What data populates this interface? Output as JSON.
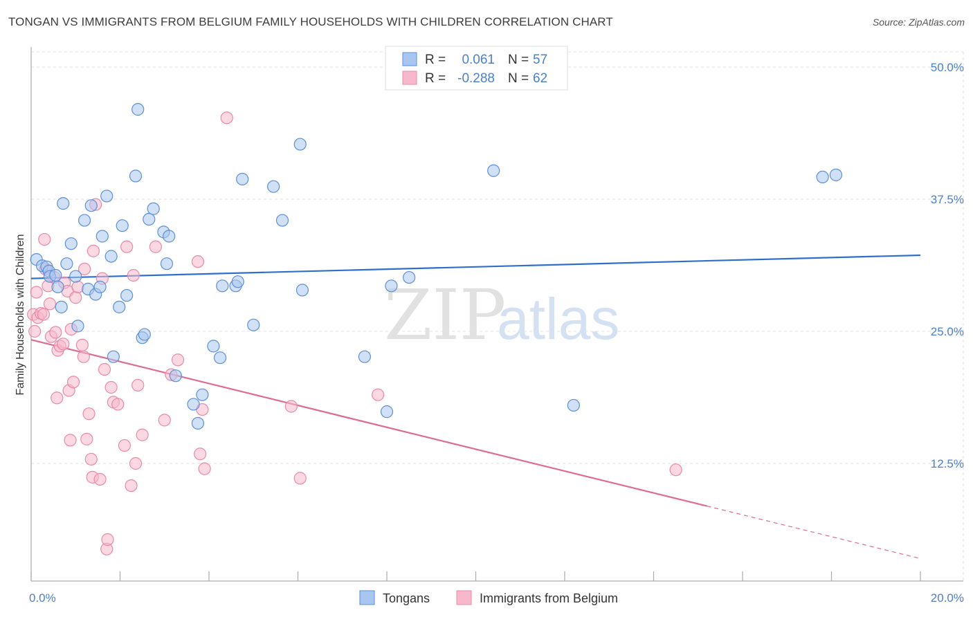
{
  "title": "TONGAN VS IMMIGRANTS FROM BELGIUM FAMILY HOUSEHOLDS WITH CHILDREN CORRELATION CHART",
  "source": "Source: ZipAtlas.com",
  "watermark": {
    "zip": "ZIP",
    "atlas": "atlas"
  },
  "colors": {
    "blue_fill": "#a9c6f0",
    "blue_stroke": "#5b8fd6",
    "blue_line": "#2f6fcc",
    "pink_fill": "#f7b8cb",
    "pink_stroke": "#e889a6",
    "pink_line": "#e06a92",
    "accent_text": "#4a7fd0"
  },
  "legend": {
    "rows": [
      {
        "r_label": "R =",
        "r_value": "0.061",
        "n_label": "N =",
        "n_value": "57"
      },
      {
        "r_label": "R =",
        "r_value": "-0.288",
        "n_label": "N =",
        "n_value": "62"
      }
    ]
  },
  "bottom_legend": [
    "Tongans",
    "Immigrants from Belgium"
  ],
  "chart_data": {
    "type": "scatter",
    "title": "TONGAN VS IMMIGRANTS FROM BELGIUM FAMILY HOUSEHOLDS WITH CHILDREN CORRELATION CHART",
    "xlabel": "",
    "ylabel": "Family Households with Children",
    "xlim": [
      0,
      20
    ],
    "ylim": [
      0,
      52
    ],
    "x_tick_labels": [
      "0.0%",
      "20.0%"
    ],
    "y_ticks": [
      12.5,
      25.0,
      37.5,
      50.0
    ],
    "y_tick_labels": [
      "12.5%",
      "25.0%",
      "37.5%",
      "50.0%"
    ],
    "grid": true,
    "series": [
      {
        "name": "Tongans",
        "r": 0.061,
        "n": 57,
        "trend": {
          "x": [
            0,
            20
          ],
          "y": [
            30.0,
            32.2
          ],
          "solid_until": 20
        },
        "points": [
          [
            0.12,
            31.8
          ],
          [
            0.25,
            31.2
          ],
          [
            0.35,
            31.1
          ],
          [
            0.4,
            30.7
          ],
          [
            0.42,
            30.2
          ],
          [
            0.55,
            30.3
          ],
          [
            0.6,
            29.2
          ],
          [
            0.68,
            27.3
          ],
          [
            0.72,
            37.1
          ],
          [
            0.8,
            31.4
          ],
          [
            0.9,
            33.3
          ],
          [
            1.0,
            30.2
          ],
          [
            1.05,
            25.5
          ],
          [
            1.2,
            35.5
          ],
          [
            1.28,
            29.0
          ],
          [
            1.35,
            36.9
          ],
          [
            1.45,
            28.5
          ],
          [
            1.55,
            29.2
          ],
          [
            1.6,
            34.0
          ],
          [
            1.7,
            37.8
          ],
          [
            1.8,
            32.1
          ],
          [
            1.85,
            22.6
          ],
          [
            1.98,
            27.3
          ],
          [
            2.05,
            35.0
          ],
          [
            2.15,
            28.4
          ],
          [
            2.35,
            39.7
          ],
          [
            2.4,
            46.0
          ],
          [
            2.5,
            24.4
          ],
          [
            2.55,
            24.7
          ],
          [
            2.65,
            35.6
          ],
          [
            2.75,
            36.6
          ],
          [
            2.98,
            34.4
          ],
          [
            3.1,
            34.0
          ],
          [
            3.05,
            31.4
          ],
          [
            3.25,
            20.8
          ],
          [
            3.65,
            18.1
          ],
          [
            3.75,
            16.3
          ],
          [
            3.85,
            19.0
          ],
          [
            4.1,
            23.6
          ],
          [
            4.25,
            22.5
          ],
          [
            4.3,
            29.3
          ],
          [
            4.6,
            29.3
          ],
          [
            4.65,
            29.7
          ],
          [
            4.75,
            39.4
          ],
          [
            5.0,
            25.6
          ],
          [
            5.45,
            38.7
          ],
          [
            5.65,
            35.5
          ],
          [
            6.05,
            42.7
          ],
          [
            6.1,
            28.9
          ],
          [
            7.5,
            22.6
          ],
          [
            8.0,
            17.4
          ],
          [
            8.1,
            29.3
          ],
          [
            8.5,
            30.1
          ],
          [
            10.4,
            40.2
          ],
          [
            12.2,
            18.0
          ],
          [
            17.8,
            39.6
          ],
          [
            18.1,
            39.8
          ]
        ]
      },
      {
        "name": "Immigrants from Belgium",
        "r": -0.288,
        "n": 62,
        "trend": {
          "x": [
            0,
            20
          ],
          "y": [
            24.2,
            3.5
          ],
          "solid_until": 15.2
        },
        "points": [
          [
            0.05,
            26.6
          ],
          [
            0.08,
            25.0
          ],
          [
            0.12,
            28.7
          ],
          [
            0.15,
            26.3
          ],
          [
            0.22,
            26.7
          ],
          [
            0.28,
            26.6
          ],
          [
            0.3,
            33.7
          ],
          [
            0.32,
            30.9
          ],
          [
            0.38,
            29.3
          ],
          [
            0.42,
            27.6
          ],
          [
            0.45,
            24.5
          ],
          [
            0.52,
            30.1
          ],
          [
            0.55,
            24.9
          ],
          [
            0.58,
            18.7
          ],
          [
            0.6,
            23.2
          ],
          [
            0.65,
            23.6
          ],
          [
            0.72,
            23.8
          ],
          [
            0.75,
            29.6
          ],
          [
            0.82,
            28.8
          ],
          [
            0.85,
            19.4
          ],
          [
            0.88,
            14.7
          ],
          [
            0.9,
            25.2
          ],
          [
            0.95,
            20.2
          ],
          [
            1.0,
            28.2
          ],
          [
            1.05,
            29.2
          ],
          [
            1.15,
            23.7
          ],
          [
            1.18,
            22.6
          ],
          [
            1.2,
            30.9
          ],
          [
            1.25,
            14.8
          ],
          [
            1.3,
            17.2
          ],
          [
            1.35,
            12.9
          ],
          [
            1.38,
            11.2
          ],
          [
            1.4,
            32.6
          ],
          [
            1.45,
            37.0
          ],
          [
            1.55,
            11.0
          ],
          [
            1.6,
            30.0
          ],
          [
            1.65,
            21.4
          ],
          [
            1.7,
            4.4
          ],
          [
            1.72,
            5.3
          ],
          [
            1.8,
            19.7
          ],
          [
            1.85,
            18.3
          ],
          [
            1.95,
            18.1
          ],
          [
            2.1,
            14.2
          ],
          [
            2.15,
            33.0
          ],
          [
            2.25,
            10.4
          ],
          [
            2.3,
            30.3
          ],
          [
            2.35,
            12.5
          ],
          [
            2.4,
            19.9
          ],
          [
            2.5,
            15.2
          ],
          [
            2.8,
            33.0
          ],
          [
            3.0,
            16.6
          ],
          [
            3.15,
            20.9
          ],
          [
            3.3,
            22.3
          ],
          [
            3.75,
            31.6
          ],
          [
            3.8,
            13.4
          ],
          [
            3.85,
            17.6
          ],
          [
            3.9,
            12.0
          ],
          [
            4.4,
            45.2
          ],
          [
            5.85,
            17.9
          ],
          [
            6.05,
            11.1
          ],
          [
            7.8,
            19.0
          ],
          [
            14.5,
            11.9
          ]
        ]
      }
    ]
  }
}
